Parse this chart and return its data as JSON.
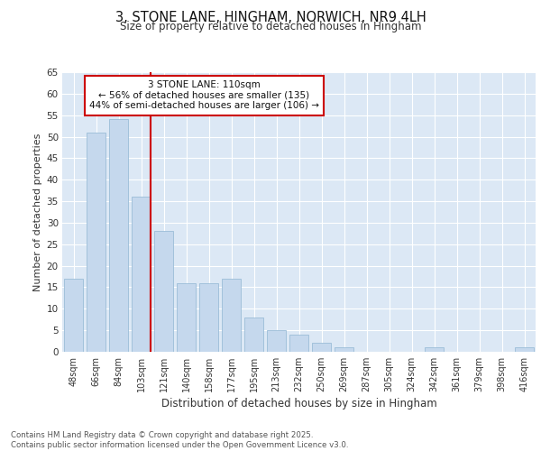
{
  "title": "3, STONE LANE, HINGHAM, NORWICH, NR9 4LH",
  "subtitle": "Size of property relative to detached houses in Hingham",
  "xlabel": "Distribution of detached houses by size in Hingham",
  "ylabel": "Number of detached properties",
  "categories": [
    "48sqm",
    "66sqm",
    "84sqm",
    "103sqm",
    "121sqm",
    "140sqm",
    "158sqm",
    "177sqm",
    "195sqm",
    "213sqm",
    "232sqm",
    "250sqm",
    "269sqm",
    "287sqm",
    "305sqm",
    "324sqm",
    "342sqm",
    "361sqm",
    "379sqm",
    "398sqm",
    "416sqm"
  ],
  "values": [
    17,
    51,
    54,
    36,
    28,
    16,
    16,
    17,
    8,
    5,
    4,
    2,
    1,
    0,
    0,
    0,
    1,
    0,
    0,
    0,
    1
  ],
  "bar_color": "#c5d8ed",
  "bar_edge_color": "#9bbdd8",
  "vline_index": 3,
  "vline_color": "#cc0000",
  "annotation_text": "3 STONE LANE: 110sqm\n← 56% of detached houses are smaller (135)\n44% of semi-detached houses are larger (106) →",
  "annotation_box_facecolor": "#ffffff",
  "annotation_box_edgecolor": "#cc0000",
  "ylim": [
    0,
    65
  ],
  "yticks": [
    0,
    5,
    10,
    15,
    20,
    25,
    30,
    35,
    40,
    45,
    50,
    55,
    60,
    65
  ],
  "fig_bg_color": "#ffffff",
  "plot_bg_color": "#dce8f5",
  "grid_color": "#ffffff",
  "footer_line1": "Contains HM Land Registry data © Crown copyright and database right 2025.",
  "footer_line2": "Contains public sector information licensed under the Open Government Licence v3.0."
}
